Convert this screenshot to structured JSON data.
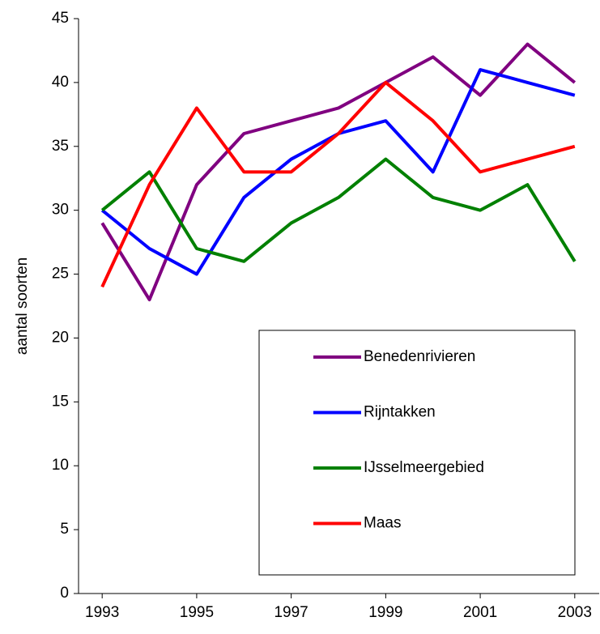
{
  "chart_data": {
    "type": "line",
    "y_label": "aantal soorten",
    "x": [
      1993,
      1994,
      1995,
      1996,
      1997,
      1998,
      1999,
      2000,
      2001,
      2002,
      2003
    ],
    "xlim": [
      1992.5,
      2003.5
    ],
    "xticks": [
      1993,
      1995,
      1997,
      1999,
      2001,
      2003
    ],
    "ylim": [
      0,
      45
    ],
    "yticks": [
      0,
      5,
      10,
      15,
      20,
      25,
      30,
      35,
      40,
      45
    ],
    "grid": false,
    "series": [
      {
        "name": "Benedenrivieren",
        "color": "#800080",
        "values": [
          29,
          23,
          32,
          36,
          37,
          38,
          40,
          42,
          39,
          43,
          40
        ]
      },
      {
        "name": "Rijntakken",
        "color": "#0000ff",
        "values": [
          30,
          27,
          25,
          31,
          34,
          36,
          37,
          33,
          41,
          40,
          39
        ]
      },
      {
        "name": "IJsselmeergebied",
        "color": "#008000",
        "values": [
          30,
          33,
          27,
          26,
          29,
          31,
          34,
          31,
          30,
          32,
          26
        ]
      },
      {
        "name": "Maas",
        "color": "#ff0000",
        "values": [
          24,
          32,
          38,
          33,
          33,
          36,
          40,
          37,
          33,
          34,
          35
        ]
      }
    ]
  }
}
